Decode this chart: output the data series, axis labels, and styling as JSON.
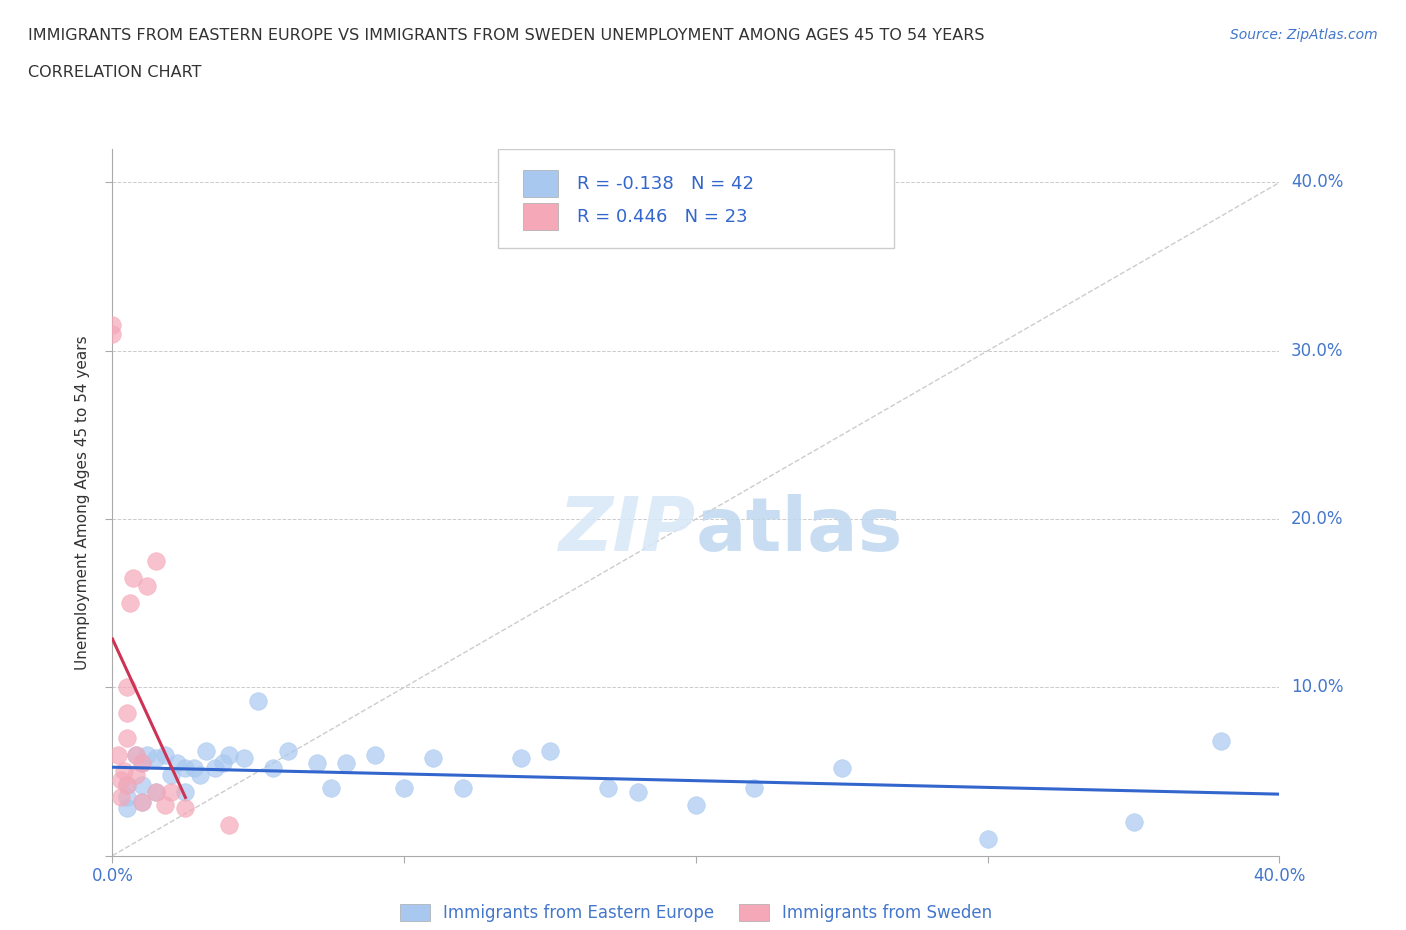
{
  "title_line1": "IMMIGRANTS FROM EASTERN EUROPE VS IMMIGRANTS FROM SWEDEN UNEMPLOYMENT AMONG AGES 45 TO 54 YEARS",
  "title_line2": "CORRELATION CHART",
  "source": "Source: ZipAtlas.com",
  "ylabel": "Unemployment Among Ages 45 to 54 years",
  "xlim": [
    0.0,
    0.4
  ],
  "ylim": [
    0.0,
    0.42
  ],
  "yticks": [
    0.0,
    0.1,
    0.2,
    0.3,
    0.4
  ],
  "xticks": [
    0.0,
    0.1,
    0.2,
    0.3,
    0.4
  ],
  "right_ytick_labels": [
    "40.0%",
    "30.0%",
    "20.0%",
    "10.0%",
    ""
  ],
  "xtick_labels": [
    "0.0%",
    "",
    "",
    "",
    "40.0%"
  ],
  "legend_blue_label": "Immigrants from Eastern Europe",
  "legend_pink_label": "Immigrants from Sweden",
  "blue_R": -0.138,
  "blue_N": 42,
  "pink_R": 0.446,
  "pink_N": 23,
  "blue_color": "#a8c8f0",
  "pink_color": "#f4a8b8",
  "blue_line_color": "#3366cc",
  "pink_line_color": "#cc3355",
  "watermark_zip": "ZIP",
  "watermark_atlas": "atlas",
  "blue_scatter_x": [
    0.005,
    0.005,
    0.005,
    0.008,
    0.01,
    0.01,
    0.01,
    0.012,
    0.015,
    0.015,
    0.018,
    0.02,
    0.022,
    0.025,
    0.025,
    0.028,
    0.03,
    0.032,
    0.035,
    0.038,
    0.04,
    0.045,
    0.05,
    0.055,
    0.06,
    0.07,
    0.075,
    0.08,
    0.09,
    0.1,
    0.11,
    0.12,
    0.14,
    0.15,
    0.17,
    0.18,
    0.2,
    0.22,
    0.25,
    0.3,
    0.35,
    0.38
  ],
  "blue_scatter_y": [
    0.042,
    0.035,
    0.028,
    0.06,
    0.055,
    0.042,
    0.032,
    0.06,
    0.058,
    0.038,
    0.06,
    0.048,
    0.055,
    0.052,
    0.038,
    0.052,
    0.048,
    0.062,
    0.052,
    0.055,
    0.06,
    0.058,
    0.092,
    0.052,
    0.062,
    0.055,
    0.04,
    0.055,
    0.06,
    0.04,
    0.058,
    0.04,
    0.058,
    0.062,
    0.04,
    0.038,
    0.03,
    0.04,
    0.052,
    0.01,
    0.02,
    0.068
  ],
  "pink_scatter_x": [
    0.0,
    0.0,
    0.002,
    0.003,
    0.003,
    0.004,
    0.005,
    0.005,
    0.005,
    0.005,
    0.006,
    0.007,
    0.008,
    0.008,
    0.01,
    0.01,
    0.012,
    0.015,
    0.015,
    0.018,
    0.02,
    0.025,
    0.04
  ],
  "pink_scatter_y": [
    0.31,
    0.315,
    0.06,
    0.045,
    0.035,
    0.05,
    0.1,
    0.085,
    0.07,
    0.042,
    0.15,
    0.165,
    0.06,
    0.048,
    0.055,
    0.032,
    0.16,
    0.175,
    0.038,
    0.03,
    0.038,
    0.028,
    0.018
  ]
}
